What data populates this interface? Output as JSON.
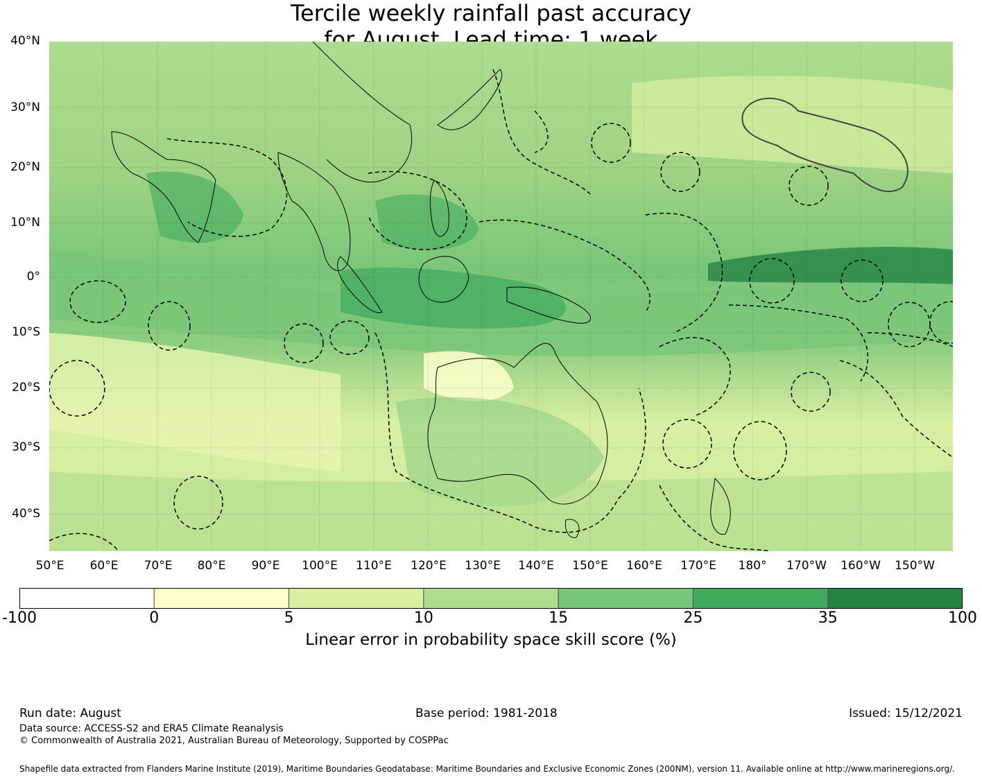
{
  "title": {
    "line1": "Tercile weekly rainfall past accuracy",
    "line2": "for August, Lead time: 1 week"
  },
  "map": {
    "lat_labels": [
      "40°N",
      "30°N",
      "20°N",
      "10°N",
      "0°",
      "10°S",
      "20°S",
      "30°S",
      "40°S"
    ],
    "lon_labels": [
      "50°E",
      "60°E",
      "70°E",
      "80°E",
      "90°E",
      "100°E",
      "110°E",
      "120°E",
      "130°E",
      "140°E",
      "150°E",
      "160°E",
      "170°E",
      "180°",
      "170°W",
      "160°W",
      "150°W"
    ],
    "extent": {
      "lon_min": 50,
      "lon_max": 217,
      "lat_min": -46,
      "lat_max": 40
    }
  },
  "colorbar": {
    "ticks": [
      "-100",
      "0",
      "5",
      "10",
      "15",
      "25",
      "35",
      "100"
    ],
    "colors": [
      "#ffffff",
      "#ffffcc",
      "#d9f0a3",
      "#addd8e",
      "#78c679",
      "#41ab5d",
      "#238443"
    ],
    "label": "Linear error in probability space skill score (%)"
  },
  "footer": {
    "run_date": "Run date: August",
    "base_period": "Base period: 1981-2018",
    "issued": "Issued: 15/12/2021",
    "data_source": "Data source: ACCESS-S2 and ERA5 Climate Reanalysis",
    "copyright": "© Commonwealth of Australia 2021, Australian Bureau of Meteorology, Supported by COSPPac",
    "shapefile": "Shapefile data extracted from Flanders Marine Institute (2019), Maritime Boundaries Geodatabase: Maritime Boundaries and Exclusive Economic Zones (200NM), version 11. Available online at http://www.marineregions.org/."
  }
}
